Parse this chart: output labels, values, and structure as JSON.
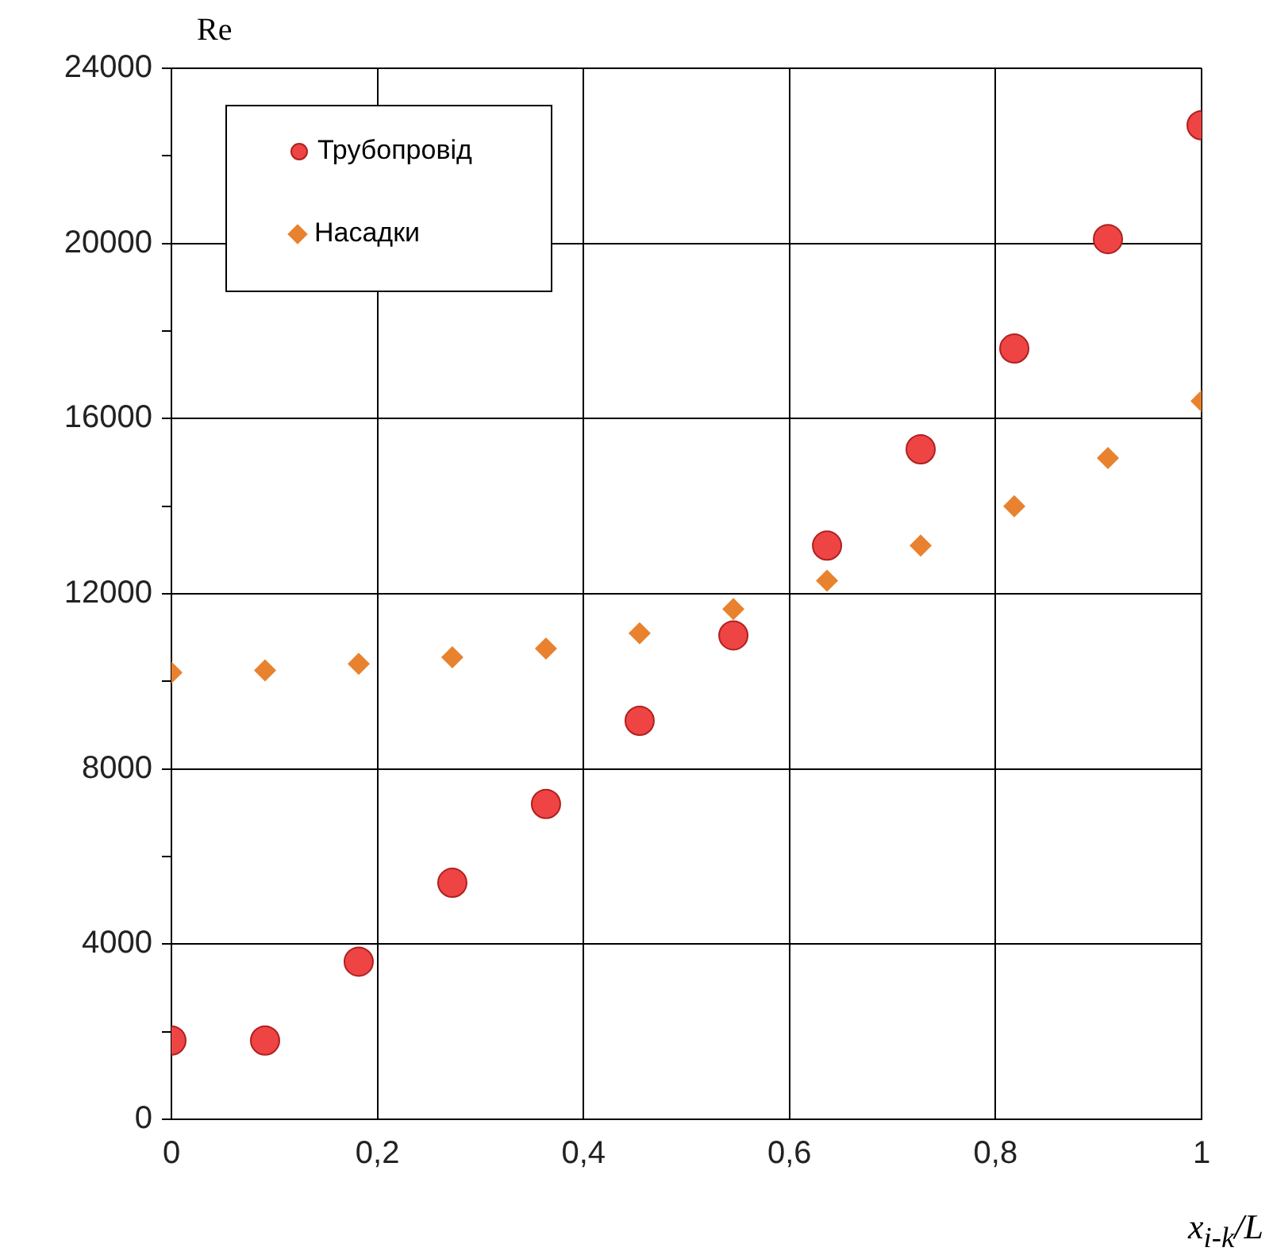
{
  "chart_data": {
    "type": "scatter",
    "ylabel": "Re",
    "xlabel": "x$_{i-k}$/L",
    "x": [
      0,
      0.0909,
      0.1818,
      0.2727,
      0.3636,
      0.4545,
      0.5455,
      0.6364,
      0.7273,
      0.8182,
      0.9091,
      1
    ],
    "series": [
      {
        "name": "Трубопровід",
        "color": "#ee4444",
        "marker": "circle",
        "values": [
          1800,
          1800,
          3600,
          5400,
          7200,
          9100,
          11050,
          13100,
          15300,
          17600,
          20100,
          22700
        ]
      },
      {
        "name": "Насадки",
        "color": "#e8822f",
        "marker": "diamond",
        "values": [
          10200,
          10250,
          10400,
          10550,
          10750,
          11100,
          11650,
          12300,
          13100,
          14000,
          15100,
          16400
        ]
      }
    ],
    "xlim": [
      0,
      1
    ],
    "xticks": [
      0,
      {
        "value": 0.2,
        "label": "0,2"
      },
      {
        "value": 0.4,
        "label": "0,4"
      },
      {
        "value": 0.6,
        "label": "0,6"
      },
      {
        "value": 0.8,
        "label": "0,8"
      },
      1
    ],
    "ylim": [
      0,
      24000
    ],
    "yticks": [
      0,
      {
        "value": 2000,
        "label": null
      },
      4000,
      {
        "value": 6000,
        "label": null
      },
      8000,
      {
        "value": 10000,
        "label": null
      },
      12000,
      {
        "value": 14000,
        "label": null
      },
      16000,
      {
        "value": 18000,
        "label": null
      },
      20000,
      {
        "value": 22000,
        "label": null
      },
      24000
    ],
    "grid": true,
    "legend": "top left"
  }
}
